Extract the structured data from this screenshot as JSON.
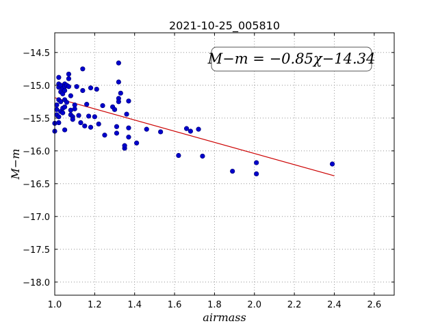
{
  "chart_data": {
    "type": "scatter",
    "title": "2021-10-25_005810",
    "xlabel": "airmass",
    "ylabel": "M−m",
    "xlim": [
      1.0,
      2.7
    ],
    "ylim": [
      -18.2,
      -14.2
    ],
    "xticks": [
      1.0,
      1.2,
      1.4,
      1.6,
      1.8,
      2.0,
      2.2,
      2.4,
      2.6
    ],
    "xtick_labels": [
      "1.0",
      "1.2",
      "1.4",
      "1.6",
      "1.8",
      "2.0",
      "2.2",
      "2.4",
      "2.6"
    ],
    "yticks": [
      -18.0,
      -17.5,
      -17.0,
      -16.5,
      -16.0,
      -15.5,
      -15.0,
      -14.5
    ],
    "ytick_labels": [
      "−18.0",
      "−17.5",
      "−17.0",
      "−16.5",
      "−16.0",
      "−15.5",
      "−15.0",
      "−14.5"
    ],
    "grid": true,
    "annotation": "M−m = −0.85χ−14.34",
    "annotation_position": "top-right",
    "point_color": "#0000cc",
    "fit_color": "#cc0000",
    "fit": {
      "slope": -0.85,
      "intercept": -14.34,
      "x_range": [
        1.0,
        2.4
      ]
    },
    "points": [
      [
        1.0,
        -15.7
      ],
      [
        1.0,
        -15.58
      ],
      [
        1.01,
        -15.45
      ],
      [
        1.01,
        -15.37
      ],
      [
        1.01,
        -15.3
      ],
      [
        1.02,
        -14.98
      ],
      [
        1.02,
        -14.88
      ],
      [
        1.02,
        -15.03
      ],
      [
        1.02,
        -15.22
      ],
      [
        1.02,
        -15.48
      ],
      [
        1.02,
        -15.57
      ],
      [
        1.03,
        -15.1
      ],
      [
        1.03,
        -15.25
      ],
      [
        1.03,
        -15.4
      ],
      [
        1.03,
        -15.0
      ],
      [
        1.04,
        -15.05
      ],
      [
        1.04,
        -15.13
      ],
      [
        1.04,
        -15.35
      ],
      [
        1.04,
        -15.42
      ],
      [
        1.05,
        -14.98
      ],
      [
        1.05,
        -15.02
      ],
      [
        1.05,
        -15.08
      ],
      [
        1.05,
        -15.22
      ],
      [
        1.05,
        -15.33
      ],
      [
        1.05,
        -15.68
      ],
      [
        1.06,
        -15.26
      ],
      [
        1.06,
        -15.0
      ],
      [
        1.07,
        -14.83
      ],
      [
        1.07,
        -14.9
      ],
      [
        1.07,
        -15.02
      ],
      [
        1.08,
        -15.16
      ],
      [
        1.08,
        -15.38
      ],
      [
        1.08,
        -15.45
      ],
      [
        1.09,
        -15.48
      ],
      [
        1.09,
        -15.52
      ],
      [
        1.1,
        -15.3
      ],
      [
        1.1,
        -15.36
      ],
      [
        1.11,
        -15.02
      ],
      [
        1.12,
        -15.46
      ],
      [
        1.13,
        -15.57
      ],
      [
        1.14,
        -14.75
      ],
      [
        1.14,
        -15.08
      ],
      [
        1.15,
        -15.62
      ],
      [
        1.16,
        -15.29
      ],
      [
        1.17,
        -15.47
      ],
      [
        1.18,
        -15.04
      ],
      [
        1.18,
        -15.64
      ],
      [
        1.2,
        -15.48
      ],
      [
        1.21,
        -15.06
      ],
      [
        1.22,
        -15.59
      ],
      [
        1.24,
        -15.31
      ],
      [
        1.25,
        -15.76
      ],
      [
        1.29,
        -15.33
      ],
      [
        1.3,
        -15.37
      ],
      [
        1.31,
        -15.73
      ],
      [
        1.31,
        -15.63
      ],
      [
        1.32,
        -14.66
      ],
      [
        1.32,
        -14.95
      ],
      [
        1.32,
        -15.2
      ],
      [
        1.32,
        -15.25
      ],
      [
        1.33,
        -15.12
      ],
      [
        1.35,
        -15.96
      ],
      [
        1.35,
        -15.92
      ],
      [
        1.36,
        -15.44
      ],
      [
        1.37,
        -15.65
      ],
      [
        1.37,
        -15.79
      ],
      [
        1.37,
        -15.24
      ],
      [
        1.41,
        -15.88
      ],
      [
        1.46,
        -15.67
      ],
      [
        1.53,
        -15.71
      ],
      [
        1.62,
        -16.07
      ],
      [
        1.66,
        -15.66
      ],
      [
        1.68,
        -15.7
      ],
      [
        1.72,
        -15.67
      ],
      [
        1.74,
        -16.08
      ],
      [
        1.89,
        -16.31
      ],
      [
        2.01,
        -16.18
      ],
      [
        2.01,
        -16.35
      ],
      [
        2.39,
        -16.2
      ]
    ]
  }
}
